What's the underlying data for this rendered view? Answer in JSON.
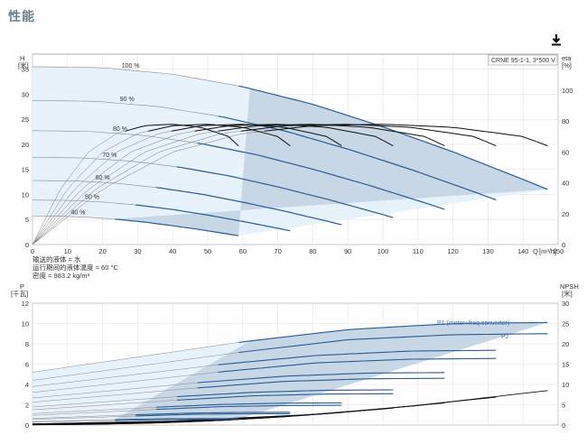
{
  "page": {
    "title": "性能",
    "download_icon": "download-icon"
  },
  "chart_data": [
    {
      "type": "line",
      "name": "performance",
      "pump_label": "CRNE 95-1-1, 3*500 V",
      "y_label": "H",
      "y_unit": "[米]",
      "y2_label": "eta",
      "y2_unit": "[%]",
      "x_label": "Q",
      "x_unit": "[m³/h]",
      "xlim": [
        0,
        150
      ],
      "ylim": [
        0,
        38
      ],
      "y2lim": [
        0,
        100
      ],
      "x_ticks": [
        0,
        10,
        20,
        30,
        40,
        50,
        60,
        70,
        80,
        90,
        100,
        110,
        120,
        130,
        140,
        150
      ],
      "y_ticks": [
        0,
        5,
        10,
        15,
        20,
        25,
        30,
        35
      ],
      "y2_ticks": [
        0,
        20,
        40,
        60,
        80,
        100
      ],
      "grid": true,
      "speed_labels": [
        "100 %",
        "90 %",
        "80 %",
        "70 %",
        "60 %",
        "50 %",
        "40 %"
      ],
      "notes": [
        "输送的液体 = 水",
        "运行期间的液体温度 = 60 °C",
        "密度 = 983.2 kg/m³"
      ],
      "speeds": [
        1.0,
        0.9,
        0.8,
        0.7,
        0.6,
        0.5,
        0.4
      ],
      "head_curve_100": {
        "x": [
          0,
          20,
          40,
          60,
          80,
          100,
          120,
          140,
          147
        ],
        "y": [
          35.5,
          35.3,
          34.0,
          31.5,
          28.0,
          23.5,
          18.5,
          13.0,
          11.0
        ]
      },
      "eta_curve_100": {
        "x": [
          0,
          20,
          40,
          60,
          80,
          100,
          120,
          140,
          147
        ],
        "y": [
          0,
          36,
          60,
          72,
          77,
          78,
          76,
          70,
          64
        ]
      }
    },
    {
      "type": "line",
      "name": "power",
      "y_label": "P",
      "y_unit": "[千瓦]",
      "y2_label": "NPSH",
      "y2_unit": "[米]",
      "xlim": [
        0,
        150
      ],
      "ylim": [
        0,
        12
      ],
      "y2lim": [
        0,
        30
      ],
      "y_ticks": [
        0,
        2,
        4,
        6,
        8,
        10,
        12
      ],
      "y2_ticks": [
        0,
        5,
        10,
        15,
        20,
        25,
        30
      ],
      "grid": true,
      "series_labels": [
        "P1 (motor+freq.converter)",
        "P2"
      ],
      "p1_curve_100": {
        "x": [
          0,
          30,
          60,
          90,
          120,
          147
        ],
        "y": [
          5.2,
          6.7,
          8.2,
          9.4,
          10.0,
          10.1
        ]
      },
      "p2_curve_100": {
        "x": [
          0,
          30,
          60,
          90,
          120,
          147
        ],
        "y": [
          4.4,
          5.8,
          7.2,
          8.4,
          8.9,
          9.0
        ]
      },
      "npsh_curve_100": {
        "x": [
          0,
          40,
          80,
          110,
          130,
          147
        ],
        "y": [
          0.3,
          1.0,
          2.6,
          4.8,
          6.8,
          8.5
        ]
      }
    }
  ]
}
